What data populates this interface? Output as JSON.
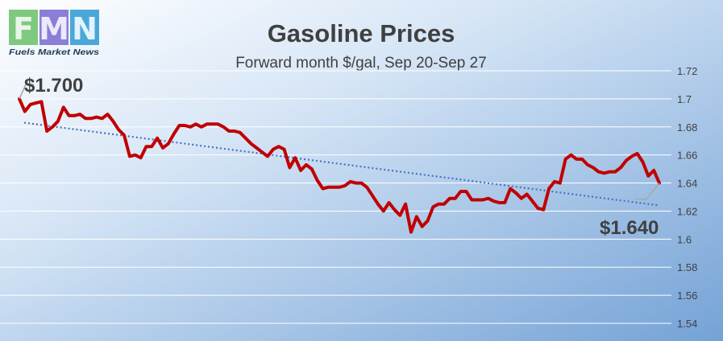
{
  "logo": {
    "letters": [
      "F",
      "M",
      "N"
    ],
    "wordmark": "Fuels Market News",
    "colors": [
      "#7fc97f",
      "#8a7fd6",
      "#4aa8d8"
    ]
  },
  "colors": {
    "background_top": "#ffffff",
    "background_bottom": "#7aa6d8",
    "line": "#c00000",
    "trend": "#4472c4",
    "gridline": "#ffffff",
    "text": "#404040"
  },
  "chart_data": {
    "type": "line",
    "title": "Gasoline Prices",
    "subtitle": "Forward month $/gal, Sep 20-Sep 27",
    "ylim": [
      1.54,
      1.72
    ],
    "yticks": [
      1.72,
      1.7,
      1.68,
      1.66,
      1.64,
      1.62,
      1.6,
      1.58,
      1.56,
      1.54
    ],
    "ytick_labels": [
      "1.72",
      "1.7",
      "1.68",
      "1.66",
      "1.64",
      "1.62",
      "1.6",
      "1.58",
      "1.56",
      "1.54"
    ],
    "grid": true,
    "series": [
      {
        "values": [
          1.7,
          1.691,
          1.696,
          1.697,
          1.698,
          1.677,
          1.68,
          1.684,
          1.694,
          1.688,
          1.688,
          1.689,
          1.686,
          1.686,
          1.687,
          1.686,
          1.689,
          1.684,
          1.678,
          1.674,
          1.659,
          1.66,
          1.658,
          1.666,
          1.666,
          1.672,
          1.665,
          1.668,
          1.675,
          1.681,
          1.681,
          1.68,
          1.682,
          1.68,
          1.682,
          1.682,
          1.682,
          1.68,
          1.677,
          1.677,
          1.676,
          1.672,
          1.668,
          1.665,
          1.662,
          1.659,
          1.664,
          1.666,
          1.664,
          1.651,
          1.658,
          1.649,
          1.653,
          1.65,
          1.642,
          1.636,
          1.637,
          1.637,
          1.637,
          1.638,
          1.641,
          1.64,
          1.64,
          1.637,
          1.631,
          1.625,
          1.62,
          1.626,
          1.621,
          1.617,
          1.625,
          1.605,
          1.616,
          1.609,
          1.613,
          1.623,
          1.625,
          1.625,
          1.629,
          1.629,
          1.634,
          1.634,
          1.628,
          1.628,
          1.628,
          1.629,
          1.627,
          1.626,
          1.626,
          1.636,
          1.633,
          1.629,
          1.632,
          1.627,
          1.622,
          1.621,
          1.636,
          1.641,
          1.64,
          1.657,
          1.66,
          1.657,
          1.657,
          1.653,
          1.651,
          1.648,
          1.647,
          1.648,
          1.648,
          1.651,
          1.656,
          1.659,
          1.661,
          1.655,
          1.645,
          1.649,
          1.64
        ]
      }
    ],
    "trendline": {
      "type": "linear",
      "start": 1.683,
      "end": 1.624
    },
    "annotations": [
      {
        "text": "$1.700",
        "point": "first"
      },
      {
        "text": "$1.640",
        "point": "last"
      }
    ]
  }
}
